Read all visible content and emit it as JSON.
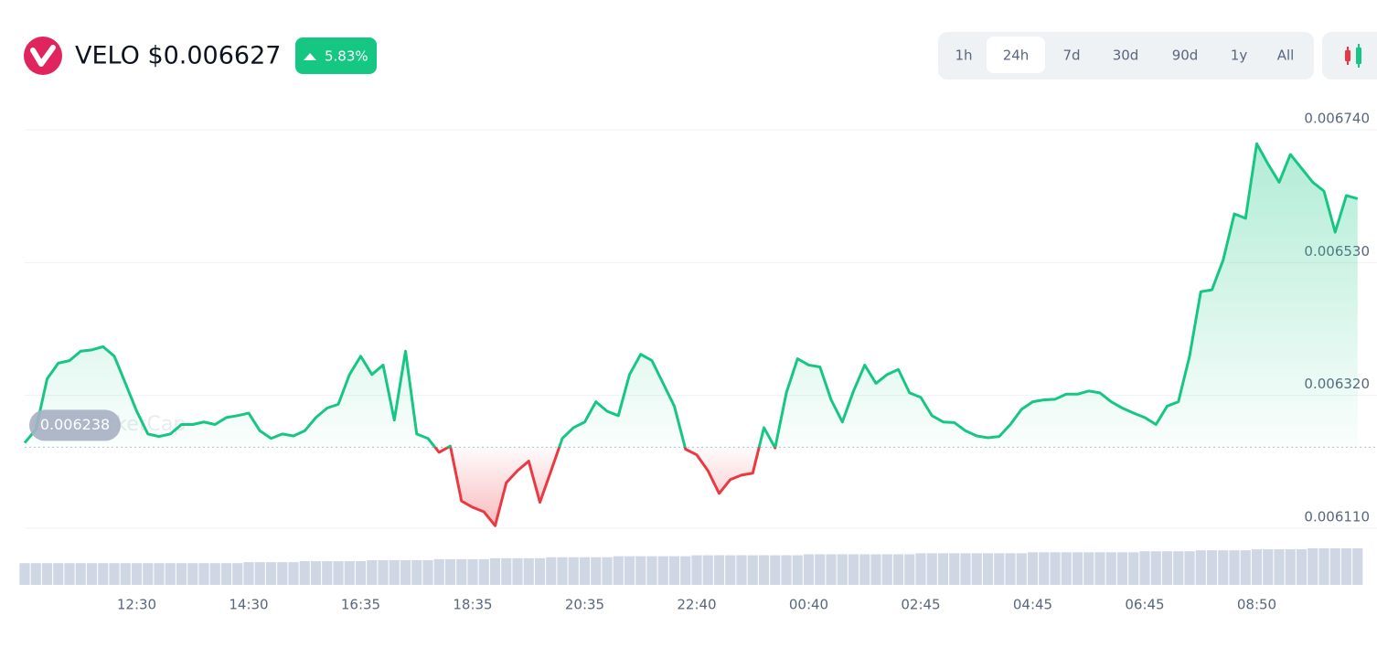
{
  "header": {
    "title": "VELO $0.006627",
    "change": "5.83%",
    "ranges": [
      "1h",
      "24h",
      "7d",
      "30d",
      "90d",
      "1y",
      "All"
    ],
    "active_range": "24h",
    "watermark": "CoinMarketCap"
  },
  "chart_data": {
    "type": "line",
    "categories": [
      null,
      null,
      null,
      null,
      null,
      null,
      null,
      null,
      null,
      null,
      "12:30",
      null,
      null,
      null,
      null,
      null,
      null,
      null,
      null,
      null,
      "14:30",
      null,
      null,
      null,
      null,
      null,
      null,
      null,
      null,
      null,
      "16:35",
      null,
      null,
      null,
      null,
      null,
      null,
      null,
      null,
      null,
      "18:35",
      null,
      null,
      null,
      null,
      null,
      null,
      null,
      null,
      null,
      "20:35",
      null,
      null,
      null,
      null,
      null,
      null,
      null,
      null,
      null,
      "22:40",
      null,
      null,
      null,
      null,
      null,
      null,
      null,
      null,
      null,
      "00:40",
      null,
      null,
      null,
      null,
      null,
      null,
      null,
      null,
      null,
      "02:45",
      null,
      null,
      null,
      null,
      null,
      null,
      null,
      null,
      null,
      "04:45",
      null,
      null,
      null,
      null,
      null,
      null,
      null,
      null,
      null,
      "06:45",
      null,
      null,
      null,
      null,
      null,
      null,
      null,
      null,
      null,
      "08:50",
      null,
      null,
      null,
      null,
      null,
      null,
      null,
      null,
      null
    ],
    "values": [
      0.006245,
      0.006266,
      0.006346,
      0.006371,
      0.006375,
      0.00639,
      0.006392,
      0.006397,
      0.006382,
      0.006339,
      0.006295,
      0.006259,
      0.006255,
      0.006259,
      0.006274,
      0.006274,
      0.006278,
      0.006274,
      0.006285,
      0.006288,
      0.006292,
      0.006264,
      0.006252,
      0.006259,
      0.006256,
      0.006264,
      0.006285,
      0.0063,
      0.006306,
      0.006353,
      0.006382,
      0.006353,
      0.006368,
      0.006281,
      0.00639,
      0.006259,
      0.006252,
      0.00623,
      0.00624,
      0.006153,
      0.006143,
      0.006136,
      0.006114,
      0.006182,
      0.006201,
      0.006216,
      0.006151,
      0.006201,
      0.006252,
      0.006269,
      0.006278,
      0.00631,
      0.006295,
      0.006288,
      0.006353,
      0.006385,
      0.006375,
      0.006339,
      0.006303,
      0.006235,
      0.006226,
      0.006201,
      0.006165,
      0.006187,
      0.006194,
      0.006197,
      0.006269,
      0.006237,
      0.006324,
      0.006378,
      0.006368,
      0.006365,
      0.006313,
      0.006278,
      0.006327,
      0.006368,
      0.006339,
      0.006353,
      0.006361,
      0.006324,
      0.006317,
      0.006288,
      0.006278,
      0.006277,
      0.006264,
      0.006256,
      0.006253,
      0.006255,
      0.006274,
      0.006298,
      0.00631,
      0.006313,
      0.006314,
      0.006322,
      0.006322,
      0.006327,
      0.006324,
      0.00631,
      0.0063,
      0.006292,
      0.006285,
      0.006274,
      0.006303,
      0.00631,
      0.006382,
      0.006484,
      0.006487,
      0.006534,
      0.006607,
      0.0066,
      0.006718,
      0.006686,
      0.006657,
      0.006701,
      0.006679,
      0.006657,
      0.006643,
      0.006578,
      0.006636,
      0.006631
    ],
    "volume": [
      22,
      22,
      22,
      22,
      22,
      22,
      22,
      22,
      22,
      22,
      22,
      22,
      22,
      22,
      22,
      22,
      22,
      22,
      22,
      22,
      23,
      23,
      23,
      23,
      23,
      24,
      24,
      24,
      24,
      24,
      24,
      25,
      25,
      25,
      25,
      25,
      25,
      26,
      26,
      26,
      26,
      26,
      27,
      27,
      27,
      27,
      27,
      28,
      28,
      28,
      28,
      28,
      28,
      29,
      29,
      29,
      29,
      29,
      29,
      29,
      30,
      30,
      30,
      30,
      30,
      30,
      30,
      30,
      30,
      30,
      31,
      31,
      31,
      31,
      31,
      31,
      31,
      31,
      31,
      31,
      32,
      32,
      32,
      32,
      32,
      32,
      32,
      32,
      32,
      32,
      33,
      33,
      33,
      33,
      33,
      33,
      33,
      33,
      33,
      33,
      34,
      34,
      34,
      34,
      34,
      35,
      35,
      35,
      35,
      35,
      36,
      36,
      36,
      36,
      36,
      37,
      37,
      37,
      37,
      37
    ],
    "reference": 0.006238,
    "color_up": "#16c784",
    "color_down": "#ea3943",
    "volume_color": "#cfd6e4",
    "ylim": [
      0.00611,
      0.00674
    ],
    "yticks": [
      {
        "value": 0.00611,
        "label": "0.006110"
      },
      {
        "value": 0.00632,
        "label": "0.006320"
      },
      {
        "value": 0.00653,
        "label": "0.006530"
      },
      {
        "value": 0.00674,
        "label": "0.006740"
      }
    ],
    "grid": true
  }
}
